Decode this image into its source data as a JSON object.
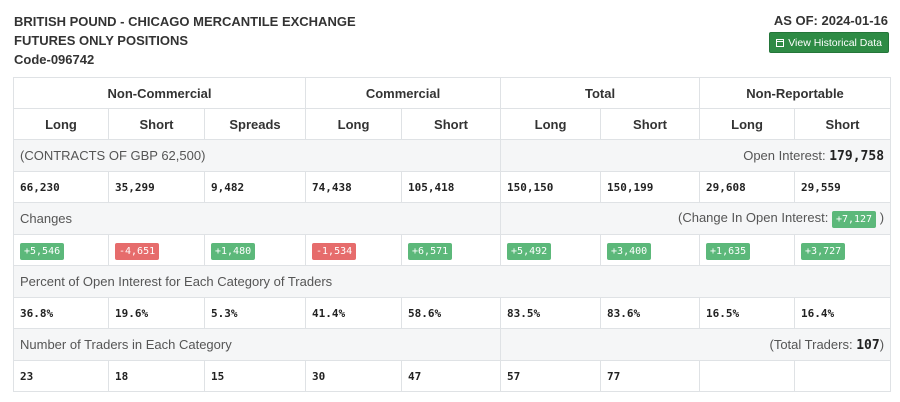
{
  "header": {
    "title_line1": "BRITISH POUND - CHICAGO MERCANTILE EXCHANGE",
    "title_line2": "FUTURES ONLY POSITIONS",
    "code": "Code-096742",
    "as_of": "AS OF: 2024-01-16",
    "button_label": "View Historical Data",
    "button_icon": "calendar-icon",
    "button_color": "#2e8b45"
  },
  "groups": [
    "Non-Commercial",
    "Commercial",
    "Total",
    "Non-Reportable"
  ],
  "columns": [
    "Long",
    "Short",
    "Spreads",
    "Long",
    "Short",
    "Long",
    "Short",
    "Long",
    "Short"
  ],
  "contracts": {
    "label": "(CONTRACTS OF GBP 62,500)",
    "open_interest_label": "Open Interest:",
    "open_interest_value": "179,758",
    "values": [
      "66,230",
      "35,299",
      "9,482",
      "74,438",
      "105,418",
      "150,150",
      "150,199",
      "29,608",
      "29,559"
    ]
  },
  "changes": {
    "label": "Changes",
    "oi_change_prefix": "(Change In Open Interest:",
    "oi_change_value": "+7,127",
    "oi_change_suffix": ")",
    "values": [
      "+5,546",
      "-4,651",
      "+1,480",
      "-1,534",
      "+6,571",
      "+5,492",
      "+3,400",
      "+1,635",
      "+3,727"
    ],
    "positive_color": "#5cb87a",
    "negative_color": "#e66c6c"
  },
  "percent": {
    "label": "Percent of Open Interest for Each Category of Traders",
    "values": [
      "36.8%",
      "19.6%",
      "5.3%",
      "41.4%",
      "58.6%",
      "83.5%",
      "83.6%",
      "16.5%",
      "16.4%"
    ]
  },
  "traders": {
    "label": "Number of Traders in Each Category",
    "total_prefix": "(Total Traders:",
    "total_value": "107",
    "total_suffix": ")",
    "values": [
      "23",
      "18",
      "15",
      "30",
      "47",
      "57",
      "77",
      "",
      ""
    ]
  }
}
